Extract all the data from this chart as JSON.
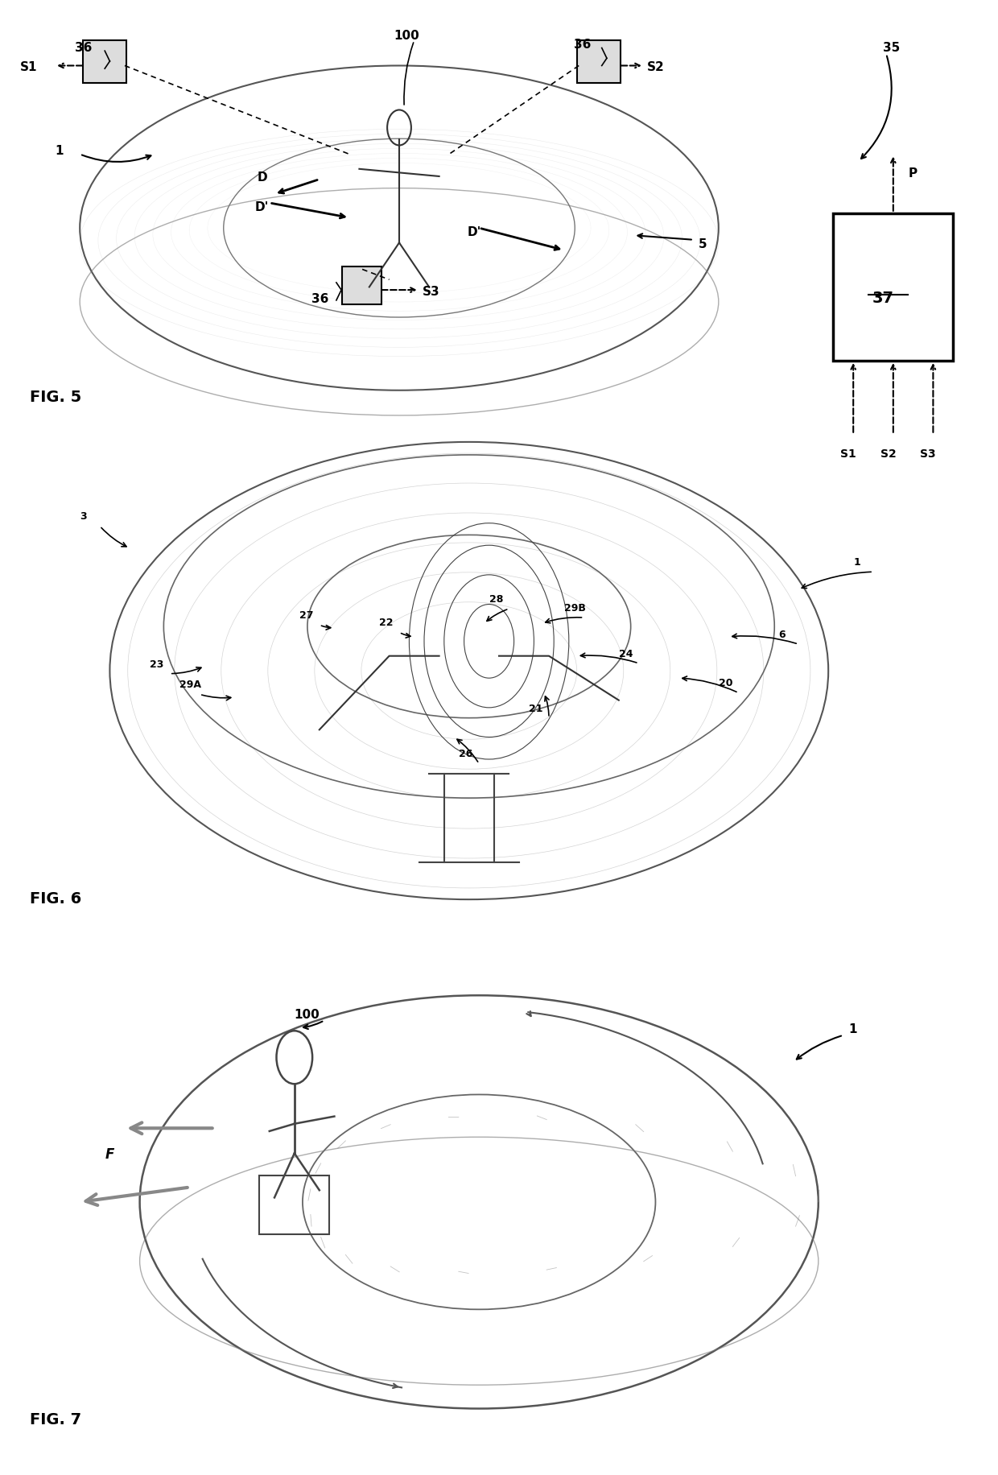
{
  "bg_color": "#ffffff",
  "line_color": "#000000",
  "sketch_color": "#888888",
  "light_sketch": "#bbbbbb",
  "fig5_label": "FIG. 5",
  "fig6_label": "FIG. 6",
  "fig7_label": "FIG. 7",
  "labels": {
    "fig5": {
      "num_1": [
        "1",
        0.08,
        0.88
      ],
      "num_5": [
        "5",
        0.72,
        0.77
      ],
      "num_36_tl": [
        "36",
        0.09,
        0.96
      ],
      "num_36_tr": [
        "36",
        0.6,
        0.96
      ],
      "num_36_b": [
        "36",
        0.35,
        0.79
      ],
      "num_100": [
        "100",
        0.4,
        0.97
      ],
      "num_S1": [
        "S1",
        0.1,
        0.91
      ],
      "num_S2": [
        "S2",
        0.63,
        0.9
      ],
      "num_S3": [
        "S3",
        0.44,
        0.79
      ],
      "num_D": [
        "D",
        0.25,
        0.87
      ],
      "num_D2a": [
        "D'",
        0.28,
        0.83
      ],
      "num_D2b": [
        "D'",
        0.55,
        0.77
      ],
      "num_35": [
        "35",
        0.9,
        0.97
      ],
      "num_37": [
        "37",
        0.905,
        0.83
      ],
      "num_P": [
        "P",
        0.91,
        0.91
      ],
      "num_S1b": [
        "S1",
        0.835,
        0.73
      ],
      "num_S2b": [
        "S2",
        0.88,
        0.73
      ],
      "num_S3b": [
        "S3",
        0.925,
        0.73
      ]
    },
    "fig6": {
      "num_1": [
        "1",
        0.92,
        0.53
      ],
      "num_3": [
        "3",
        0.07,
        0.54
      ],
      "num_6": [
        "6",
        0.78,
        0.62
      ],
      "num_20": [
        "20",
        0.72,
        0.69
      ],
      "num_21": [
        "21",
        0.53,
        0.71
      ],
      "num_22": [
        "22",
        0.38,
        0.58
      ],
      "num_23": [
        "23",
        0.18,
        0.7
      ],
      "num_24": [
        "24",
        0.63,
        0.67
      ],
      "num_26": [
        "26",
        0.47,
        0.76
      ],
      "num_27": [
        "27",
        0.33,
        0.57
      ],
      "num_28": [
        "28",
        0.5,
        0.54
      ],
      "num_29A": [
        "29A",
        0.22,
        0.65
      ],
      "num_29B": [
        "29B",
        0.59,
        0.56
      ]
    },
    "fig7": {
      "num_1": [
        "1",
        0.88,
        0.88
      ],
      "num_100": [
        "100",
        0.37,
        0.82
      ],
      "num_F": [
        "F",
        0.13,
        0.93
      ]
    }
  }
}
